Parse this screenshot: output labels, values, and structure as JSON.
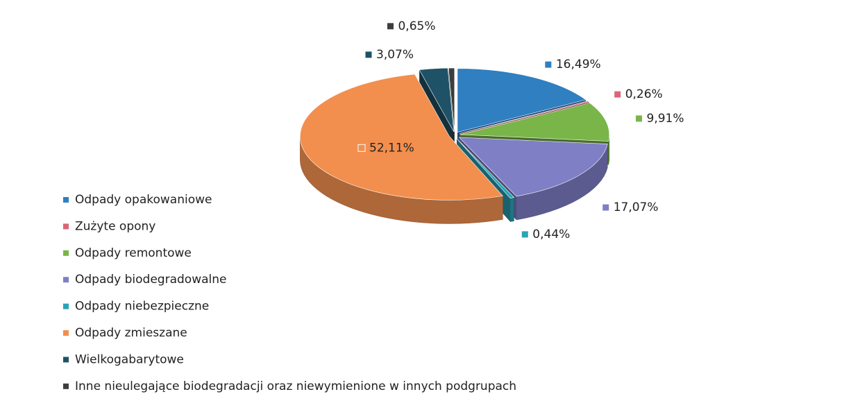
{
  "chart_data": {
    "type": "pie",
    "categories": [
      "Odpady opakowaniowe",
      "Zużyte opony",
      "Odpady remontowe",
      "Odpady biodegradowalne",
      "Odpady niebezpieczne",
      "Odpady zmieszane",
      "Wielkogabarytowe",
      "Inne nieulegające biodegradacji oraz niewymienione w innych podgrupach"
    ],
    "values": [
      16.49,
      0.26,
      9.91,
      17.07,
      0.44,
      52.11,
      3.07,
      0.65
    ],
    "value_labels": [
      "16,49%",
      "0,26%",
      "9,91%",
      "17,07%",
      "0,44%",
      "52,11%",
      "3,07%",
      "0,65%"
    ],
    "colors": [
      "#2f7fc1",
      "#d9667a",
      "#79b548",
      "#7f7fc6",
      "#2aa3b6",
      "#f28f4e",
      "#1f5266",
      "#3d3d3d"
    ],
    "legend": "left"
  }
}
